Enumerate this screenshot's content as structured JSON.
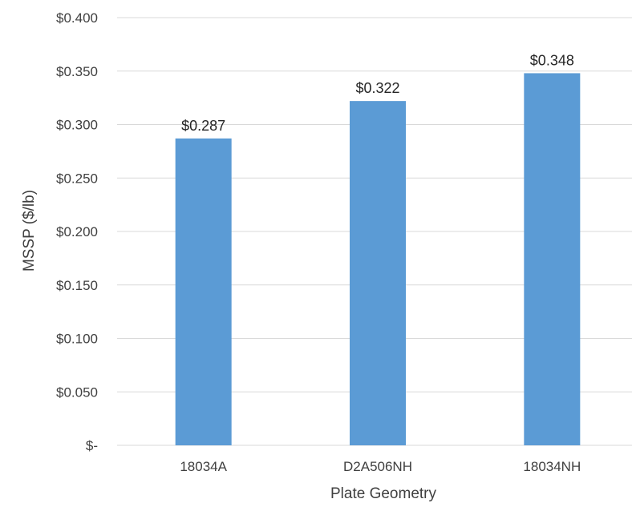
{
  "chart_data": {
    "type": "bar",
    "title": "",
    "xlabel": "Plate Geometry",
    "ylabel": "MSSP ($/lb)",
    "categories": [
      "18034A",
      "D2A506NH",
      "18034NH"
    ],
    "values": [
      0.287,
      0.322,
      0.348
    ],
    "data_labels": [
      "$0.287",
      "$0.322",
      "$0.348"
    ],
    "ylim": [
      0,
      0.4
    ],
    "yticks": [
      0,
      0.05,
      0.1,
      0.15,
      0.2,
      0.25,
      0.3,
      0.35,
      0.4
    ],
    "ytick_labels": [
      "$-",
      "$0.050",
      "$0.100",
      "$0.150",
      "$0.200",
      "$0.250",
      "$0.300",
      "$0.350",
      "$0.400"
    ],
    "grid": true,
    "legend": "none",
    "bar_color": "#5B9BD5",
    "grid_color": "#D9D9D9"
  }
}
